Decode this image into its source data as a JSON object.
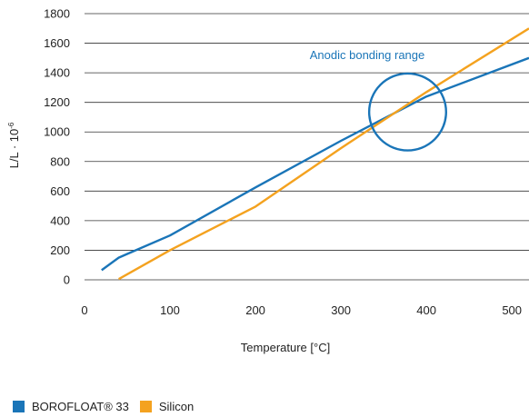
{
  "chart_data": {
    "type": "line",
    "title": "",
    "xlabel": "Temperature [°C]",
    "ylabel": "L/L · 10",
    "ylabel_superscript": "-6",
    "xlim": [
      0,
      520
    ],
    "ylim": [
      0,
      1800
    ],
    "x_ticks": [
      0,
      100,
      200,
      300,
      400,
      500
    ],
    "y_ticks": [
      0,
      200,
      400,
      600,
      800,
      1000,
      1200,
      1400,
      1600,
      1800
    ],
    "grid": "horizontal",
    "legend_position": "bottom-left",
    "series": [
      {
        "name": "BOROFLOAT® 33",
        "color": "#1a75b8",
        "x": [
          20,
          40,
          50,
          100,
          200,
          300,
          400,
          520
        ],
        "y": [
          65,
          150,
          175,
          300,
          625,
          940,
          1240,
          1500
        ]
      },
      {
        "name": "Silicon",
        "color": "#f4a21f",
        "x": [
          40,
          100,
          200,
          300,
          400,
          520
        ],
        "y": [
          5,
          200,
          495,
          890,
          1270,
          1700
        ]
      }
    ],
    "annotations": [
      {
        "text": "Anodic bonding range",
        "color": "#1a75b8",
        "circle_center": [
          378,
          1135
        ],
        "circle_radius_x": 45
      }
    ]
  }
}
